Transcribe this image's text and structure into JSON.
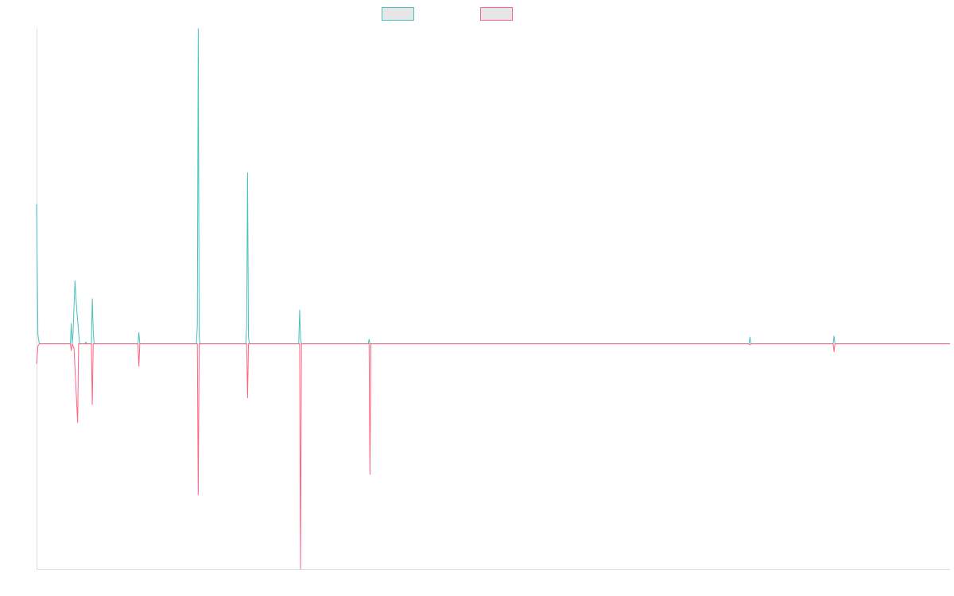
{
  "chart_data": {
    "type": "line",
    "title": "",
    "xlabel": "",
    "ylabel": "",
    "grid": false,
    "legend_position": "top-center",
    "xlim": [
      0,
      1000
    ],
    "ylim": [
      -1.0,
      1.4
    ],
    "colors": {
      "legend_fill": "#e6e6e6",
      "axis": "#dddddd"
    },
    "series": [
      {
        "color": "#4bc0c0",
        "points": [
          [
            0,
            0.62
          ],
          [
            1.5,
            0.04
          ],
          [
            3,
            0.0
          ],
          [
            37,
            0.0
          ],
          [
            38,
            0.09
          ],
          [
            39,
            0.0
          ],
          [
            40,
            0.05
          ],
          [
            42,
            0.28
          ],
          [
            44,
            0.15
          ],
          [
            45.5,
            0.08
          ],
          [
            47,
            0.0
          ],
          [
            53,
            0.0
          ],
          [
            54,
            0.008
          ],
          [
            55,
            0.0
          ],
          [
            60,
            0.0
          ],
          [
            61,
            0.2
          ],
          [
            62,
            0.06
          ],
          [
            63,
            0.0
          ],
          [
            111,
            0.0
          ],
          [
            112,
            0.05
          ],
          [
            113,
            0.0
          ],
          [
            175,
            0.0
          ],
          [
            176,
            0.08
          ],
          [
            177,
            1.4
          ],
          [
            178,
            0.03
          ],
          [
            179,
            0.0
          ],
          [
            229,
            0.0
          ],
          [
            230,
            0.08
          ],
          [
            231,
            0.76
          ],
          [
            232,
            0.03
          ],
          [
            233,
            0.0
          ],
          [
            287,
            0.0
          ],
          [
            288,
            0.15
          ],
          [
            289,
            0.02
          ],
          [
            290,
            0.0
          ],
          [
            363,
            0.0
          ],
          [
            364,
            0.02
          ],
          [
            365,
            0.0
          ],
          [
            780,
            0.0
          ],
          [
            781,
            0.03
          ],
          [
            782,
            0.0
          ],
          [
            872,
            0.0
          ],
          [
            873,
            0.035
          ],
          [
            874,
            0.0
          ],
          [
            1000,
            0.0
          ]
        ]
      },
      {
        "color": "#ff6384",
        "points": [
          [
            0,
            -0.09
          ],
          [
            1.5,
            -0.01
          ],
          [
            3,
            0.0
          ],
          [
            37,
            0.0
          ],
          [
            38,
            -0.03
          ],
          [
            39,
            0.0
          ],
          [
            41,
            -0.02
          ],
          [
            45,
            -0.35
          ],
          [
            46,
            0.0
          ],
          [
            60,
            0.0
          ],
          [
            61,
            -0.27
          ],
          [
            62,
            0.0
          ],
          [
            111,
            0.0
          ],
          [
            112,
            -0.1
          ],
          [
            113,
            0.0
          ],
          [
            176,
            0.0
          ],
          [
            177,
            -0.67
          ],
          [
            178,
            0.0
          ],
          [
            230,
            0.0
          ],
          [
            231,
            -0.24
          ],
          [
            232,
            0.0
          ],
          [
            288,
            0.0
          ],
          [
            289,
            -1.0
          ],
          [
            290,
            0.0
          ],
          [
            364,
            0.0
          ],
          [
            365,
            -0.58
          ],
          [
            366,
            0.0
          ],
          [
            780,
            0.0
          ],
          [
            781,
            -0.005
          ],
          [
            782,
            0.0
          ],
          [
            872,
            0.0
          ],
          [
            873,
            -0.035
          ],
          [
            874,
            0.0
          ],
          [
            1000,
            0.0
          ]
        ]
      }
    ]
  }
}
